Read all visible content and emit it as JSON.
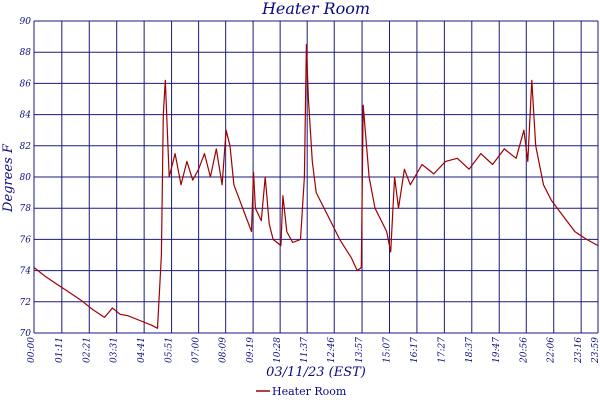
{
  "chart_data": {
    "type": "line",
    "title": "Heater Room",
    "xlabel": "03/11/23 (EST)",
    "ylabel": "Degrees F",
    "ylim": [
      70,
      90
    ],
    "xlim": [
      "00:00",
      "23:59"
    ],
    "grid": true,
    "legend_position": "bottom-center",
    "y_ticks": [
      "70",
      "72",
      "74",
      "76",
      "78",
      "80",
      "82",
      "84",
      "86",
      "88",
      "90"
    ],
    "x_tick_labels": [
      "00:00",
      "01:11",
      "02:21",
      "03:31",
      "04:41",
      "05:51",
      "07:00",
      "08:09",
      "09:19",
      "10:28",
      "11:37",
      "12:46",
      "13:57",
      "15:07",
      "16:17",
      "17:27",
      "18:37",
      "19:47",
      "20:56",
      "22:06",
      "23:16",
      "23:59"
    ],
    "colors": {
      "series": "#a00000",
      "grid": "#1a1a80",
      "text": "#0a0a80"
    },
    "series": [
      {
        "name": "Heater Room",
        "x": [
          "00:00",
          "00:30",
          "01:00",
          "01:30",
          "02:00",
          "02:30",
          "03:00",
          "03:20",
          "03:40",
          "04:00",
          "04:30",
          "05:00",
          "05:15",
          "05:25",
          "05:30",
          "05:35",
          "05:45",
          "06:00",
          "06:15",
          "06:30",
          "06:45",
          "07:00",
          "07:15",
          "07:30",
          "07:45",
          "08:00",
          "08:10",
          "08:20",
          "08:30",
          "08:45",
          "09:00",
          "09:15",
          "09:20",
          "09:25",
          "09:40",
          "09:50",
          "10:00",
          "10:10",
          "10:30",
          "10:35",
          "10:45",
          "11:00",
          "11:20",
          "11:30",
          "11:35",
          "11:40",
          "11:50",
          "12:00",
          "12:30",
          "13:00",
          "13:30",
          "13:45",
          "13:55",
          "14:00",
          "14:15",
          "14:30",
          "15:00",
          "15:10",
          "15:20",
          "15:30",
          "15:45",
          "16:00",
          "16:30",
          "17:00",
          "17:30",
          "18:00",
          "18:30",
          "19:00",
          "19:30",
          "20:00",
          "20:30",
          "20:50",
          "21:00",
          "21:10",
          "21:20",
          "21:40",
          "22:00",
          "22:30",
          "23:00",
          "23:30",
          "23:59"
        ],
        "values": [
          74.2,
          73.6,
          73.1,
          72.6,
          72.1,
          71.5,
          71.0,
          71.6,
          71.2,
          71.1,
          70.8,
          70.5,
          70.3,
          75.0,
          84.0,
          86.2,
          80.0,
          81.5,
          79.5,
          81.0,
          79.8,
          80.5,
          81.5,
          80.0,
          81.8,
          79.5,
          83.0,
          82.0,
          79.5,
          78.5,
          77.5,
          76.5,
          80.3,
          78.0,
          77.2,
          80.0,
          77.0,
          76.0,
          75.6,
          78.8,
          76.5,
          75.8,
          76.0,
          80.0,
          88.5,
          85.0,
          81.0,
          79.0,
          77.5,
          76.0,
          74.8,
          74.0,
          74.2,
          84.6,
          80.0,
          78.0,
          76.5,
          75.2,
          80.0,
          78.0,
          80.5,
          79.5,
          80.8,
          80.2,
          81.0,
          81.2,
          80.5,
          81.5,
          80.8,
          81.8,
          81.2,
          83.0,
          81.0,
          86.2,
          82.0,
          79.5,
          78.5,
          77.5,
          76.5,
          76.0,
          75.6
        ]
      }
    ]
  }
}
